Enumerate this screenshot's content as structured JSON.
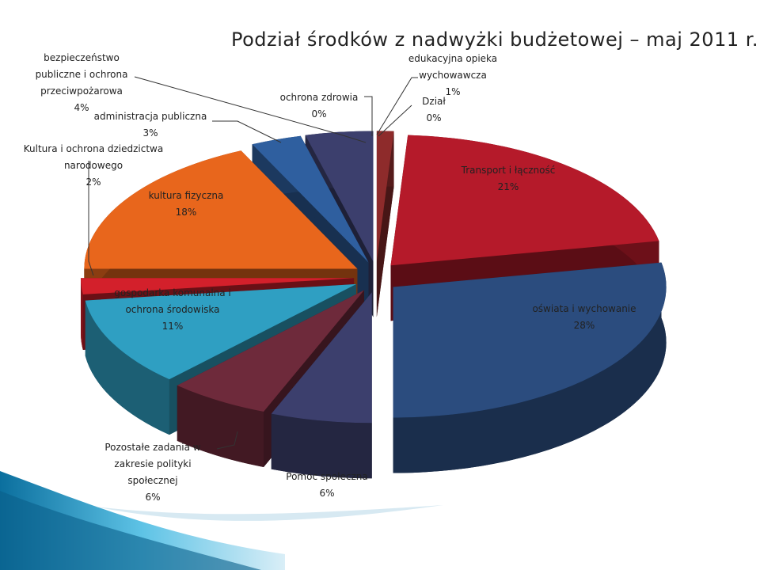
{
  "chart_data": {
    "type": "pie",
    "title": "Podział środków z nadwyżki budżetowej – maj 2011 r.",
    "categories": [
      "Dział",
      "edukacyjna opieka wychowawcza",
      "Transport i łączność",
      "oświata i wychowanie",
      "Pomoc społeczna",
      "Pozostałe zadania w zakresie polityki społecznej",
      "gospodarka komunalna i ochrona środowiska",
      "Kultura i ochrona dziedzictwa narodowego",
      "kultura fizyczna",
      "administracja publiczna",
      "bezpieczeństwo publiczne i ochrona przeciwpożarowa",
      "ochrona zdrowia"
    ],
    "values": [
      0,
      1,
      21,
      28,
      6,
      6,
      11,
      2,
      18,
      3,
      4,
      0
    ],
    "value_labels": [
      "0%",
      "1%",
      "21%",
      "28%",
      "6%",
      "6%",
      "11%",
      "2%",
      "18%",
      "3%",
      "4%",
      "0%"
    ],
    "colors": [
      "#a9cfe3",
      "#8e2b2b",
      "#b51a2a",
      "#2b4c7e",
      "#3c3f6d",
      "#6e2a3b",
      "#2f9fc2",
      "#d3202b",
      "#e8661c",
      "#2f5f9f",
      "#3c3f6d",
      "#8e2b2b"
    ]
  }
}
